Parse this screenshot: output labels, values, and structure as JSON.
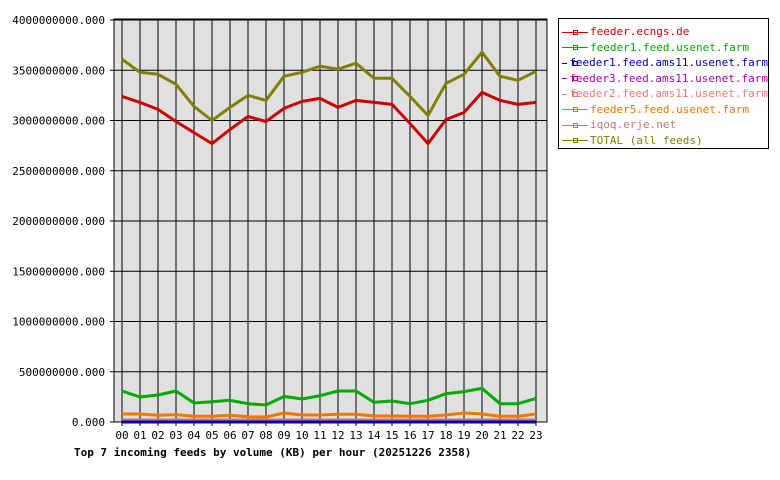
{
  "chart_data": {
    "type": "line",
    "title": "Top 7 incoming feeds by volume (KB) per hour (20251226 2358)",
    "xlabel": "",
    "ylabel": "",
    "ylim": [
      0,
      4000000000
    ],
    "yticks": [
      "0.000",
      "500000000.000",
      "1000000000.000",
      "1500000000.000",
      "2000000000.000",
      "2500000000.000",
      "3000000000.000",
      "3500000000.000",
      "4000000000.000"
    ],
    "grid": true,
    "legend_position": "right",
    "categories": [
      "00",
      "01",
      "02",
      "03",
      "04",
      "05",
      "06",
      "07",
      "08",
      "09",
      "10",
      "11",
      "12",
      "13",
      "14",
      "15",
      "16",
      "17",
      "18",
      "19",
      "20",
      "21",
      "22",
      "23"
    ],
    "series": [
      {
        "name": "feeder.ecngs.de",
        "color": "#cc0000",
        "values": [
          3240000000,
          3180000000,
          3110000000,
          2990000000,
          2880000000,
          2770000000,
          2910000000,
          3040000000,
          2990000000,
          3120000000,
          3190000000,
          3220000000,
          3130000000,
          3200000000,
          3180000000,
          3160000000,
          2970000000,
          2770000000,
          3010000000,
          3080000000,
          3280000000,
          3200000000,
          3160000000,
          3180000000
        ]
      },
      {
        "name": "feeder1.feed.usenet.farm",
        "color": "#00aa00",
        "values": [
          308000000,
          249000000,
          269000000,
          308000000,
          189000000,
          202000000,
          216000000,
          182000000,
          169000000,
          255000000,
          229000000,
          262000000,
          308000000,
          308000000,
          196000000,
          209000000,
          182000000,
          216000000,
          282000000,
          302000000,
          335000000,
          182000000,
          182000000,
          235000000
        ]
      },
      {
        "name": "feeder1.feed.ams11.usenet.farm",
        "color": "#0000aa",
        "values": [
          0,
          0,
          0,
          0,
          0,
          0,
          0,
          0,
          0,
          0,
          0,
          0,
          0,
          0,
          0,
          0,
          0,
          0,
          0,
          0,
          0,
          0,
          0,
          0
        ]
      },
      {
        "name": "feeder3.feed.ams11.usenet.farm",
        "color": "#aa00aa",
        "values": [
          0,
          0,
          0,
          0,
          0,
          0,
          0,
          0,
          0,
          0,
          0,
          0,
          0,
          0,
          0,
          0,
          0,
          0,
          0,
          0,
          0,
          0,
          0,
          0
        ]
      },
      {
        "name": "feeder2.feed.ams11.usenet.farm",
        "color": "#ee7777",
        "values": [
          0,
          0,
          0,
          0,
          0,
          0,
          0,
          0,
          0,
          0,
          0,
          0,
          0,
          0,
          0,
          0,
          0,
          0,
          0,
          0,
          0,
          0,
          0,
          0
        ]
      },
      {
        "name": "feeder5.feed.usenet.farm",
        "color": "#ee7700",
        "values": [
          80000000,
          80000000,
          67000000,
          74000000,
          57000000,
          57000000,
          67000000,
          53000000,
          50000000,
          90000000,
          70000000,
          70000000,
          77000000,
          77000000,
          60000000,
          60000000,
          57000000,
          57000000,
          70000000,
          90000000,
          80000000,
          57000000,
          57000000,
          80000000
        ]
      },
      {
        "name": "iqoq.erje.net",
        "color": "#c07878",
        "values": [
          20000000,
          20000000,
          20000000,
          20000000,
          20000000,
          20000000,
          20000000,
          20000000,
          20000000,
          20000000,
          20000000,
          20000000,
          20000000,
          20000000,
          20000000,
          20000000,
          20000000,
          20000000,
          20000000,
          20000000,
          20000000,
          20000000,
          20000000,
          20000000
        ]
      },
      {
        "name": "TOTAL (all feeds)",
        "color": "#808000",
        "values": [
          3610000000,
          3480000000,
          3460000000,
          3360000000,
          3140000000,
          3000000000,
          3130000000,
          3250000000,
          3200000000,
          3440000000,
          3480000000,
          3540000000,
          3510000000,
          3570000000,
          3420000000,
          3420000000,
          3240000000,
          3050000000,
          3370000000,
          3460000000,
          3680000000,
          3440000000,
          3400000000,
          3490000000
        ]
      }
    ]
  },
  "colors": {
    "plot_background": "#e0e0e0",
    "grid": "#000000"
  }
}
